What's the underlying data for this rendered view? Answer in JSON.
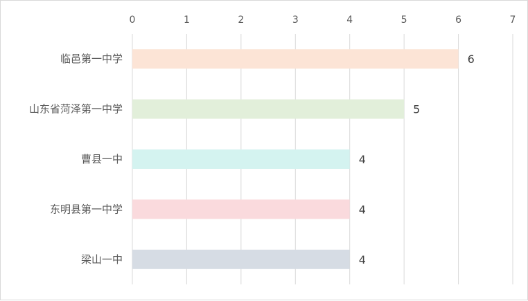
{
  "chart_data": {
    "type": "bar",
    "orientation": "horizontal",
    "categories": [
      "临邑第一中学",
      "山东省菏泽第一中学",
      "曹县一中",
      "东明县第一中学",
      "梁山一中"
    ],
    "values": [
      6,
      5,
      4,
      4,
      4
    ],
    "bar_colors": [
      "#fce4d6",
      "#e2efda",
      "#d4f3f0",
      "#fadadd",
      "#d6dce4"
    ],
    "xlim": [
      0,
      7
    ],
    "xticks": [
      "0",
      "1",
      "2",
      "3",
      "4",
      "5",
      "6",
      "7"
    ],
    "x_axis_position": "top",
    "data_labels": [
      "6",
      "5",
      "4",
      "4",
      "4"
    ],
    "grid": true,
    "legend": "none",
    "title": "",
    "xlabel": "",
    "ylabel": ""
  }
}
